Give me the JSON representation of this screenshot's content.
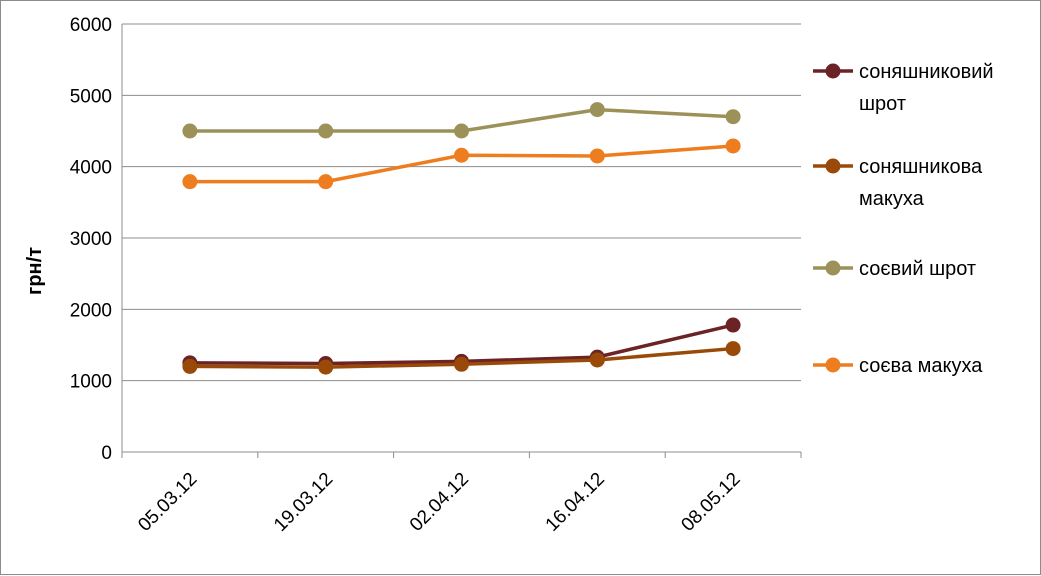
{
  "chart_data": {
    "type": "line",
    "title": "",
    "xlabel": "",
    "ylabel": "грн/т",
    "ylim": [
      0,
      6000
    ],
    "yticks": [
      0,
      1000,
      2000,
      3000,
      4000,
      5000,
      6000
    ],
    "categories": [
      "05.03.12",
      "19.03.12",
      "02.04.12",
      "16.04.12",
      "08.05.12"
    ],
    "grid": "horizontal",
    "legend_position": "right",
    "series": [
      {
        "name": "соняшниковий шрот",
        "legend_lines": [
          "соняшниковий",
          "шрот"
        ],
        "color": "#6b2326",
        "values": [
          1250,
          1240,
          1270,
          1330,
          1780
        ]
      },
      {
        "name": "соняшникова макуха",
        "legend_lines": [
          "соняшникова",
          "макуха"
        ],
        "color": "#9a4a08",
        "values": [
          1200,
          1190,
          1230,
          1290,
          1450
        ]
      },
      {
        "name": "соєвий шрот",
        "legend_lines": [
          "соєвий шрот"
        ],
        "color": "#9c9158",
        "values": [
          4500,
          4500,
          4500,
          4800,
          4700
        ]
      },
      {
        "name": "соєва макуха",
        "legend_lines": [
          "соєва макуха"
        ],
        "color": "#ed7d1f",
        "values": [
          3790,
          3790,
          4160,
          4150,
          4290
        ]
      }
    ]
  }
}
